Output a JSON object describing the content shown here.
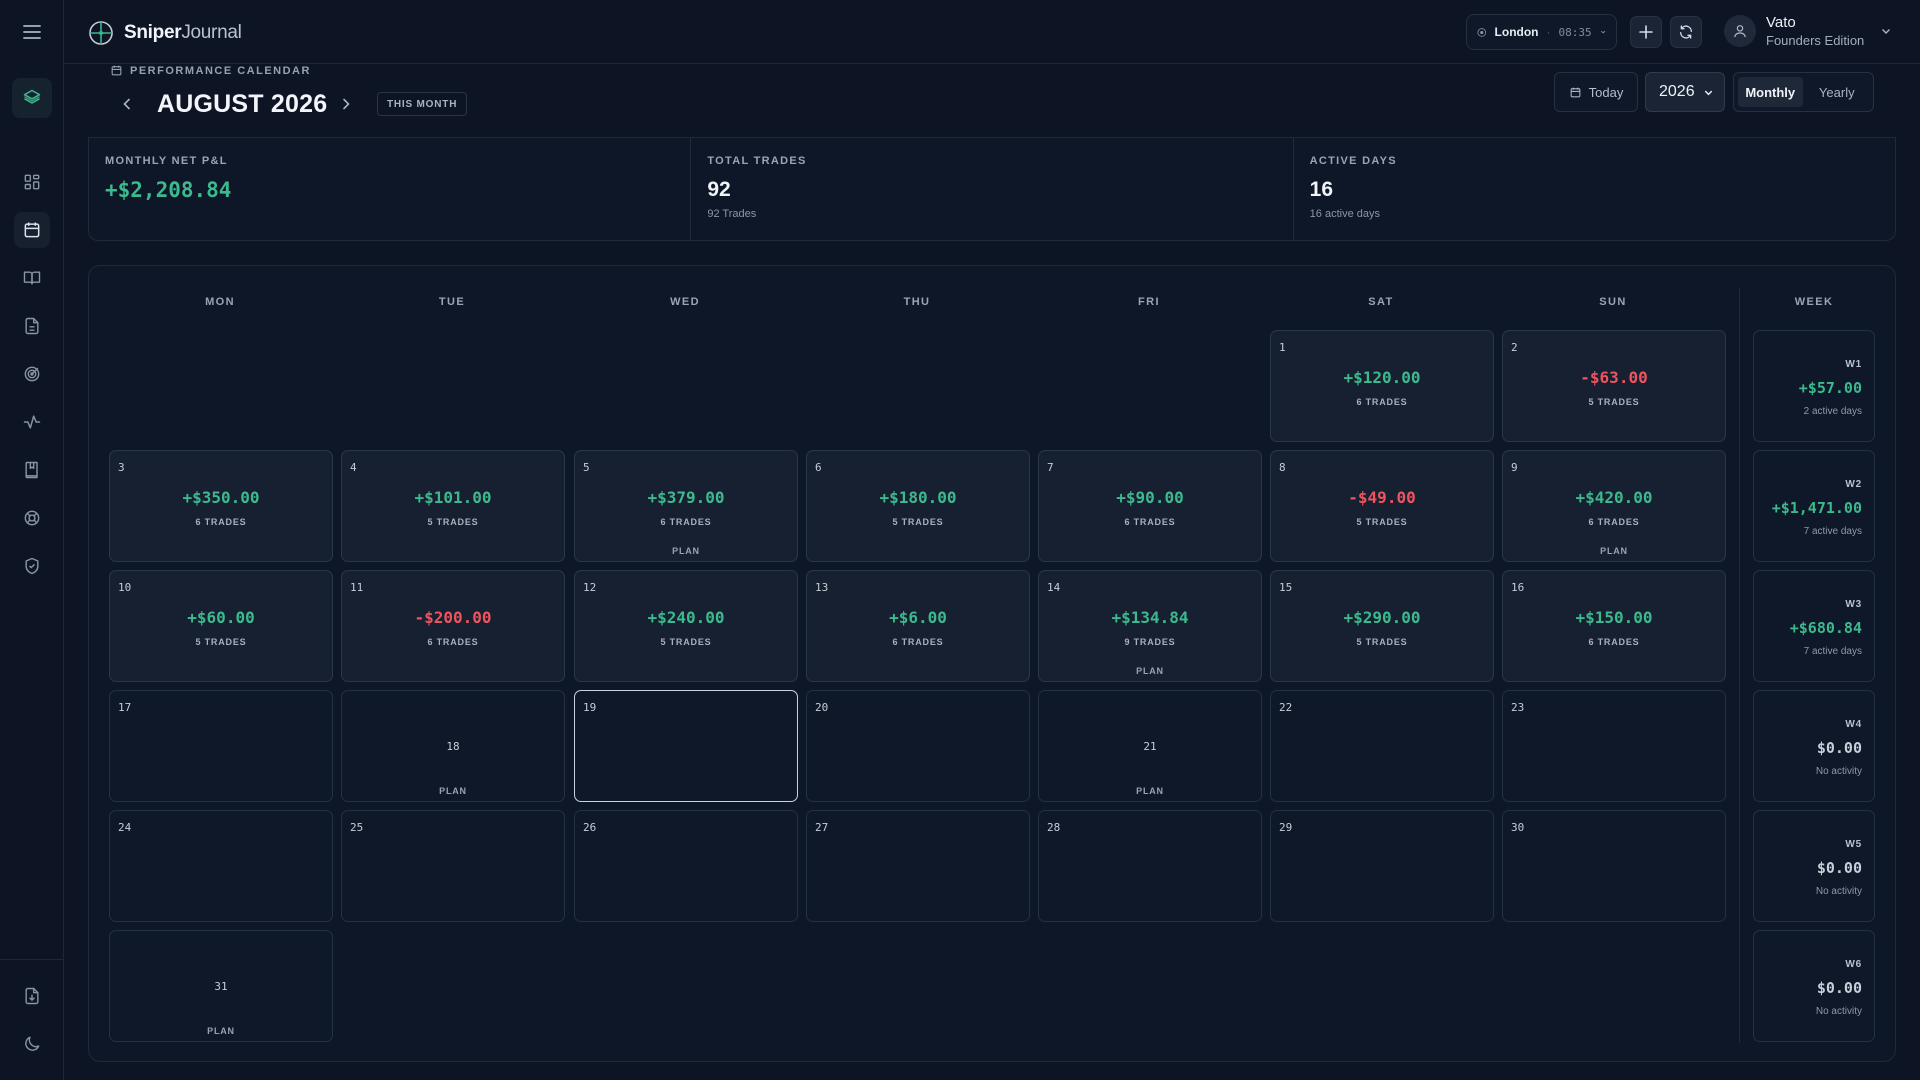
{
  "app": {
    "brand_bold": "Sniper",
    "brand_light": "Journal"
  },
  "sidebar": {
    "items": [
      {
        "name": "sidebar-item-dashboard",
        "icon": "grid-icon"
      },
      {
        "name": "sidebar-item-calendar",
        "icon": "calendar-icon",
        "active": true
      },
      {
        "name": "sidebar-item-journal",
        "icon": "book-icon"
      },
      {
        "name": "sidebar-item-reports",
        "icon": "document-icon"
      },
      {
        "name": "sidebar-item-goals",
        "icon": "target-icon"
      },
      {
        "name": "sidebar-item-analytics",
        "icon": "pulse-icon"
      },
      {
        "name": "sidebar-item-playbook",
        "icon": "bookmark-icon"
      },
      {
        "name": "sidebar-item-support",
        "icon": "lifebuoy-icon"
      },
      {
        "name": "sidebar-item-security",
        "icon": "shield-icon"
      },
      {
        "name": "sidebar-item-export",
        "icon": "download-file-icon"
      },
      {
        "name": "sidebar-item-theme",
        "icon": "moon-icon"
      }
    ]
  },
  "header": {
    "session": {
      "city": "London",
      "time": "08:35"
    },
    "user": {
      "name": "Vato",
      "edition": "Founders Edition"
    }
  },
  "calendar": {
    "section_label": "PERFORMANCE CALENDAR",
    "month_title": "AUGUST 2026",
    "this_month_label": "THIS MONTH",
    "today_label": "Today",
    "year": "2026",
    "view_options": [
      "Monthly",
      "Yearly"
    ],
    "active_view": "Monthly",
    "weekdays": [
      "MON",
      "TUE",
      "WED",
      "THU",
      "FRI",
      "SAT",
      "SUN"
    ],
    "week_header": "WEEK",
    "selected_day": 19
  },
  "stats": [
    {
      "label": "MONTHLY NET P&L",
      "value": "+$2,208.84",
      "sub": "",
      "tone": "pos"
    },
    {
      "label": "TOTAL TRADES",
      "value": "92",
      "sub": "92 Trades",
      "tone": ""
    },
    {
      "label": "ACTIVE DAYS",
      "value": "16",
      "sub": "16 active days",
      "tone": ""
    }
  ],
  "days": [
    {
      "d": 1,
      "pnl": "+$120.00",
      "trades": "6 TRADES"
    },
    {
      "d": 2,
      "pnl": "-$63.00",
      "trades": "5 TRADES"
    },
    {
      "d": 3,
      "pnl": "+$350.00",
      "trades": "6 TRADES"
    },
    {
      "d": 4,
      "pnl": "+$101.00",
      "trades": "5 TRADES"
    },
    {
      "d": 5,
      "pnl": "+$379.00",
      "trades": "6 TRADES",
      "plan": "PLAN"
    },
    {
      "d": 6,
      "pnl": "+$180.00",
      "trades": "5 TRADES"
    },
    {
      "d": 7,
      "pnl": "+$90.00",
      "trades": "6 TRADES"
    },
    {
      "d": 8,
      "pnl": "-$49.00",
      "trades": "5 TRADES"
    },
    {
      "d": 9,
      "pnl": "+$420.00",
      "trades": "6 TRADES",
      "plan": "PLAN"
    },
    {
      "d": 10,
      "pnl": "+$60.00",
      "trades": "5 TRADES"
    },
    {
      "d": 11,
      "pnl": "-$200.00",
      "trades": "6 TRADES"
    },
    {
      "d": 12,
      "pnl": "+$240.00",
      "trades": "5 TRADES"
    },
    {
      "d": 13,
      "pnl": "+$6.00",
      "trades": "6 TRADES"
    },
    {
      "d": 14,
      "pnl": "+$134.84",
      "trades": "9 TRADES",
      "plan": "PLAN"
    },
    {
      "d": 15,
      "pnl": "+$290.00",
      "trades": "5 TRADES"
    },
    {
      "d": 16,
      "pnl": "+$150.00",
      "trades": "6 TRADES"
    },
    {
      "d": 17
    },
    {
      "d": 18,
      "plan": "PLAN"
    },
    {
      "d": 19
    },
    {
      "d": 20
    },
    {
      "d": 21,
      "plan": "PLAN"
    },
    {
      "d": 22
    },
    {
      "d": 23
    },
    {
      "d": 24
    },
    {
      "d": 25
    },
    {
      "d": 26
    },
    {
      "d": 27
    },
    {
      "d": 28
    },
    {
      "d": 29
    },
    {
      "d": 30
    },
    {
      "d": 31,
      "plan": "PLAN"
    }
  ],
  "weeks": [
    {
      "label": "W1",
      "value": "+$57.00",
      "sub": "2 active days"
    },
    {
      "label": "W2",
      "value": "+$1,471.00",
      "sub": "7 active days"
    },
    {
      "label": "W3",
      "value": "+$680.84",
      "sub": "7 active days"
    },
    {
      "label": "W4",
      "value": "$0.00",
      "sub": "No activity"
    },
    {
      "label": "W5",
      "value": "$0.00",
      "sub": "No activity"
    },
    {
      "label": "W6",
      "value": "$0.00",
      "sub": "No activity"
    }
  ],
  "colors": {
    "positive": "#3cb98d",
    "negative": "#f0525e",
    "accent": "#3db58c"
  }
}
